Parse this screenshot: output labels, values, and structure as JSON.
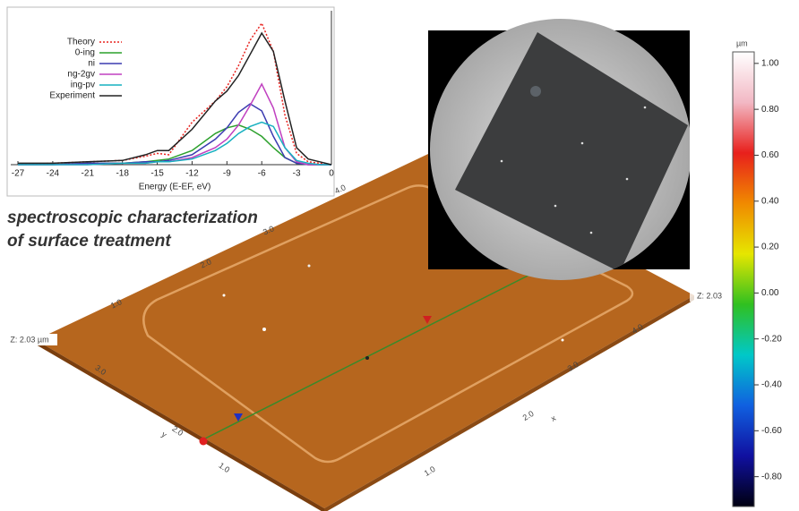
{
  "chart_data": [
    {
      "type": "line",
      "xlabel": "Energy (E-EF, eV)",
      "x": [
        -27,
        -24,
        -21,
        -18,
        -16,
        -15,
        -14,
        -12,
        -10,
        -9,
        -8,
        -7,
        -6,
        -5,
        -4,
        -3,
        -2,
        -1,
        0
      ],
      "xlim": [
        -27,
        0
      ],
      "xticks": [
        -27,
        -24,
        -21,
        -18,
        -15,
        -12,
        -9,
        -6,
        -3,
        0
      ],
      "ylim": [
        0,
        1.05
      ],
      "series": [
        {
          "name": "Theory",
          "color": "#e8231f",
          "dash": true,
          "values": [
            0,
            0.01,
            0.02,
            0.03,
            0.06,
            0.08,
            0.07,
            0.3,
            0.45,
            0.55,
            0.7,
            0.88,
            1.0,
            0.8,
            0.35,
            0.08,
            0.02,
            0.01,
            0
          ]
        },
        {
          "name": "0-ing",
          "color": "#2ca02c",
          "values": [
            0,
            0,
            0.01,
            0.01,
            0.02,
            0.03,
            0.04,
            0.1,
            0.22,
            0.26,
            0.28,
            0.25,
            0.2,
            0.12,
            0.05,
            0.01,
            0,
            0,
            0
          ]
        },
        {
          "name": "ni",
          "color": "#3b3bb0",
          "values": [
            0,
            0,
            0.01,
            0.01,
            0.02,
            0.02,
            0.03,
            0.07,
            0.18,
            0.26,
            0.37,
            0.43,
            0.38,
            0.2,
            0.05,
            0.01,
            0,
            0,
            0
          ]
        },
        {
          "name": "ng-2gv",
          "color": "#c040c0",
          "values": [
            0,
            0,
            0,
            0.01,
            0.01,
            0.02,
            0.02,
            0.05,
            0.12,
            0.18,
            0.28,
            0.42,
            0.57,
            0.4,
            0.12,
            0.02,
            0,
            0,
            0
          ]
        },
        {
          "name": "ing-pv",
          "color": "#17b0c0",
          "values": [
            0,
            0,
            0,
            0.01,
            0.01,
            0.02,
            0.02,
            0.04,
            0.1,
            0.15,
            0.22,
            0.27,
            0.3,
            0.27,
            0.12,
            0.03,
            0.01,
            0,
            0
          ]
        },
        {
          "name": "Experiment",
          "color": "#222222",
          "values": [
            0.01,
            0.01,
            0.02,
            0.03,
            0.07,
            0.1,
            0.1,
            0.25,
            0.45,
            0.52,
            0.63,
            0.78,
            0.93,
            0.8,
            0.45,
            0.12,
            0.04,
            0.02,
            0
          ]
        }
      ]
    },
    {
      "type": "colorbar",
      "title": "µm",
      "ylim": [
        -0.93,
        1.05
      ],
      "yticks": [
        {
          "value": 1.0,
          "label": "1.00"
        },
        {
          "value": 0.8,
          "label": "0.80"
        },
        {
          "value": 0.6,
          "label": "0.60"
        },
        {
          "value": 0.4,
          "label": "0.40"
        },
        {
          "value": 0.2,
          "label": "0.20"
        },
        {
          "value": 0,
          "label": "0.00"
        },
        {
          "value": -0.2,
          "label": "-0.20"
        },
        {
          "value": -0.4,
          "label": "-0.40"
        },
        {
          "value": -0.6,
          "label": "-0.60"
        },
        {
          "value": -0.8,
          "label": "-0.80"
        }
      ],
      "colors": [
        "#ffffff",
        "#f2b8c4",
        "#e8201c",
        "#f08a00",
        "#e6e600",
        "#30c020",
        "#00c8c8",
        "#1060e0",
        "#1010a0",
        "#000010"
      ]
    }
  ],
  "annotation": [
    "spectroscopic characterization",
    "of surface treatment"
  ],
  "surface": {
    "z_label_left": "Z: 2.03 µm",
    "z_label_right": "Z: 2.03",
    "x_label": "x",
    "y_label": "y",
    "x_ticks": [
      "1.0",
      "2.0",
      "3.0",
      "4.0"
    ],
    "y_ticks": [
      "1.0",
      "2.0",
      "3.0"
    ],
    "back_ticks": [
      "1.0",
      "2.0",
      "3.0",
      "4.0"
    ]
  }
}
